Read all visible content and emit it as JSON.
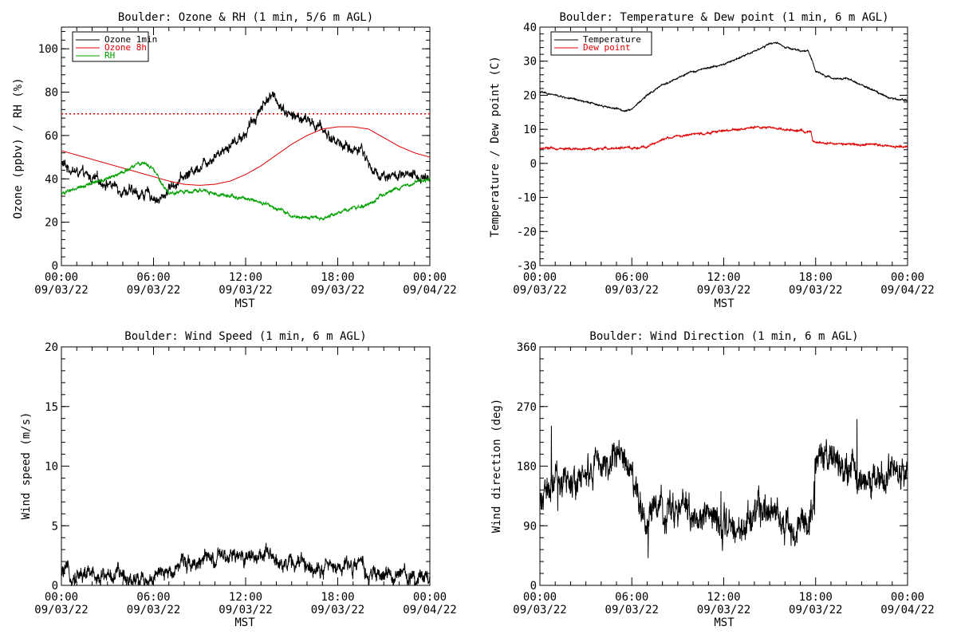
{
  "chart_data": [
    {
      "type": "line",
      "title": "Boulder: Ozone & RH (1 min, 5/6 m AGL)",
      "xlabel": "MST",
      "ylabel": "Ozone (ppbv) / RH (%)",
      "xlim": [
        "2022-09-03 00:00",
        "2022-09-04 00:00"
      ],
      "ylim": [
        0,
        110
      ],
      "yticks": [
        0,
        20,
        40,
        60,
        80,
        100
      ],
      "xticks": [
        {
          "time": "00:00",
          "date": "09/03/22",
          "hour": 0
        },
        {
          "time": "06:00",
          "date": "09/03/22",
          "hour": 6
        },
        {
          "time": "12:00",
          "date": "09/03/22",
          "hour": 12
        },
        {
          "time": "18:00",
          "date": "09/03/22",
          "hour": 18
        },
        {
          "time": "00:00",
          "date": "09/04/22",
          "hour": 24
        }
      ],
      "legend": "top-left",
      "reference_line": {
        "y": 70,
        "color": "#dd0000",
        "style": "dotted"
      },
      "series": [
        {
          "name": "Ozone 1min",
          "color": "#000000",
          "noise": 2.5,
          "x": [
            0,
            0.5,
            1,
            2,
            3,
            4,
            4.5,
            5,
            5.5,
            6,
            6.3,
            6.6,
            7,
            8,
            9,
            10,
            11,
            12,
            12.5,
            13,
            13.5,
            14,
            14.5,
            15,
            16,
            17,
            17.5,
            18,
            18.5,
            19,
            19.5,
            20,
            20.5,
            21,
            22,
            23,
            24
          ],
          "y": [
            47,
            45,
            43,
            40,
            38,
            35,
            34,
            33,
            33,
            32,
            30,
            31,
            36,
            41,
            46,
            51,
            56,
            61,
            67,
            73,
            78,
            77,
            72,
            69,
            67,
            63,
            59,
            57,
            55,
            53,
            55,
            47,
            42,
            42,
            41,
            41,
            41
          ]
        },
        {
          "name": "Ozone 8h",
          "color": "#dd0000",
          "noise": 0,
          "x": [
            0,
            2,
            4,
            6,
            7,
            8,
            9,
            10,
            11,
            12,
            13,
            14,
            15,
            16,
            17,
            18,
            19,
            20,
            21,
            22,
            23,
            24
          ],
          "y": [
            53,
            49,
            45,
            41,
            39,
            37.5,
            37,
            37.5,
            39,
            42,
            46,
            51,
            56,
            60,
            63,
            64,
            64,
            63,
            59,
            55,
            52,
            50
          ]
        },
        {
          "name": "RH",
          "color": "#00a000",
          "noise": 0.8,
          "x": [
            0,
            1,
            2,
            3,
            4,
            4.5,
            5,
            5.5,
            6,
            6.5,
            7,
            7.5,
            8,
            9,
            10,
            11,
            12,
            13,
            14,
            15,
            16,
            17,
            18,
            19,
            19.5,
            20,
            21,
            22,
            23,
            24
          ],
          "y": [
            33,
            36,
            38,
            40,
            43,
            45,
            47,
            47,
            44,
            38,
            33,
            34,
            34,
            35,
            33,
            32,
            31,
            29,
            26,
            23,
            22,
            22,
            24,
            27,
            27,
            28,
            33,
            36,
            38,
            40
          ]
        }
      ]
    },
    {
      "type": "line",
      "title": "Boulder: Temperature & Dew point (1 min, 6 m AGL)",
      "xlabel": "MST",
      "ylabel": "Temperature / Dew point (C)",
      "xlim": [
        "2022-09-03 00:00",
        "2022-09-04 00:00"
      ],
      "ylim": [
        -30,
        40
      ],
      "yticks": [
        -30,
        -20,
        -10,
        0,
        10,
        20,
        30,
        40
      ],
      "xticks": [
        {
          "time": "00:00",
          "date": "09/03/22",
          "hour": 0
        },
        {
          "time": "06:00",
          "date": "09/03/22",
          "hour": 6
        },
        {
          "time": "12:00",
          "date": "09/03/22",
          "hour": 12
        },
        {
          "time": "18:00",
          "date": "09/03/22",
          "hour": 18
        },
        {
          "time": "00:00",
          "date": "09/04/22",
          "hour": 24
        }
      ],
      "legend": "top-left",
      "series": [
        {
          "name": "Temperature",
          "color": "#000000",
          "noise": 0.25,
          "x": [
            0,
            1,
            2,
            3,
            4,
            5,
            5.5,
            6,
            6.5,
            7,
            8,
            9,
            10,
            11,
            12,
            13,
            14,
            15,
            15.5,
            16,
            17,
            17.5,
            17.8,
            18,
            18.5,
            19,
            20,
            21,
            22,
            23,
            24
          ],
          "y": [
            21,
            20,
            19,
            18,
            17,
            16,
            15.5,
            16,
            18,
            20,
            23,
            25,
            27,
            28,
            29,
            31,
            33,
            35,
            35.5,
            34,
            33,
            33,
            30,
            27,
            26,
            25,
            25,
            23,
            21,
            19,
            18.5
          ]
        },
        {
          "name": "Dew point",
          "color": "#dd0000",
          "noise": 0.3,
          "x": [
            0,
            2,
            4,
            5,
            6,
            6.5,
            7,
            7.5,
            8,
            9,
            10,
            11,
            12,
            13,
            14,
            15,
            16,
            17,
            17.7,
            17.8,
            18,
            19,
            20,
            21,
            22,
            23,
            24
          ],
          "y": [
            4.5,
            4.2,
            4.3,
            4.5,
            4.5,
            4.5,
            5,
            6,
            7,
            8,
            8.5,
            9,
            9.5,
            10,
            10.5,
            10.5,
            10,
            9.5,
            9,
            6.5,
            6,
            5.8,
            5.7,
            5.5,
            5.5,
            5,
            4.8
          ]
        }
      ]
    },
    {
      "type": "line",
      "title": "Boulder: Wind Speed (1 min, 6 m AGL)",
      "xlabel": "MST",
      "ylabel": "Wind speed (m/s)",
      "xlim": [
        "2022-09-03 00:00",
        "2022-09-04 00:00"
      ],
      "ylim": [
        0,
        20
      ],
      "yticks": [
        0,
        5,
        10,
        15,
        20
      ],
      "xticks": [
        {
          "time": "00:00",
          "date": "09/03/22",
          "hour": 0
        },
        {
          "time": "06:00",
          "date": "09/03/22",
          "hour": 6
        },
        {
          "time": "12:00",
          "date": "09/03/22",
          "hour": 12
        },
        {
          "time": "18:00",
          "date": "09/03/22",
          "hour": 18
        },
        {
          "time": "00:00",
          "date": "09/04/22",
          "hour": 24
        }
      ],
      "series": [
        {
          "name": "",
          "color": "#000000",
          "noise": 0.7,
          "x": [
            0,
            2,
            4,
            5,
            6,
            7,
            7.5,
            8,
            10,
            12,
            12.5,
            13,
            14,
            16,
            18,
            19,
            19.5,
            20,
            22,
            24
          ],
          "y": [
            1,
            0.9,
            0.8,
            0.6,
            0.6,
            1,
            1.8,
            2,
            2.1,
            2.4,
            2.6,
            2.5,
            2.1,
            1.7,
            1.5,
            1.8,
            1.6,
            0.8,
            0.8,
            0.8
          ]
        }
      ]
    },
    {
      "type": "line",
      "title": "Boulder: Wind Direction (1 min, 6 m AGL)",
      "xlabel": "MST",
      "ylabel": "Wind direction (deg)",
      "xlim": [
        "2022-09-03 00:00",
        "2022-09-04 00:00"
      ],
      "ylim": [
        0,
        360
      ],
      "yticks": [
        0,
        90,
        180,
        270,
        360
      ],
      "xticks": [
        {
          "time": "00:00",
          "date": "09/03/22",
          "hour": 0
        },
        {
          "time": "06:00",
          "date": "09/03/22",
          "hour": 6
        },
        {
          "time": "12:00",
          "date": "09/03/22",
          "hour": 12
        },
        {
          "time": "18:00",
          "date": "09/03/22",
          "hour": 18
        },
        {
          "time": "00:00",
          "date": "09/04/22",
          "hour": 24
        }
      ],
      "series": [
        {
          "name": "",
          "color": "#000000",
          "noise": 25,
          "x": [
            0,
            1,
            2,
            3,
            4,
            5,
            5.5,
            6,
            6.3,
            6.5,
            7,
            8,
            9,
            10,
            11,
            12,
            13,
            14,
            15,
            16,
            17,
            17.5,
            17.8,
            18,
            19,
            20,
            21,
            22,
            23,
            24
          ],
          "y": [
            130,
            150,
            160,
            170,
            175,
            190,
            200,
            170,
            140,
            110,
            105,
            110,
            115,
            110,
            95,
            100,
            95,
            100,
            110,
            90,
            80,
            80,
            120,
            195,
            180,
            175,
            150,
            160,
            170,
            180
          ]
        }
      ]
    }
  ]
}
